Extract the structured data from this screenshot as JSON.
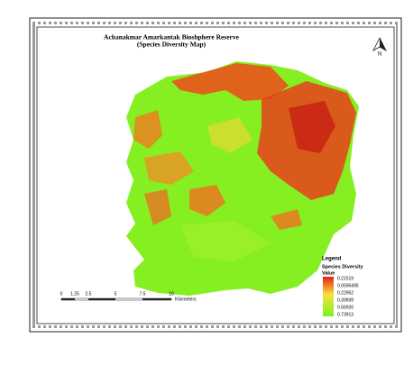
{
  "title": {
    "line1": "Achanakmar Amarkantak Bioshphere Reserve",
    "line2": "(Species Diversity Map)"
  },
  "north_arrow": {
    "label": "N"
  },
  "legend": {
    "heading": "Legend",
    "title": "Species Diversity",
    "subtitle": "Value",
    "labels": [
      "0.21519",
      "0.0596495",
      "0.22952",
      "0.39939",
      "0.56926",
      "0.73913"
    ]
  },
  "scale_bar": {
    "ticks": [
      "0",
      "1.25",
      "2.5",
      "5",
      "7.5",
      "10"
    ],
    "unit": "Kilometers"
  }
}
